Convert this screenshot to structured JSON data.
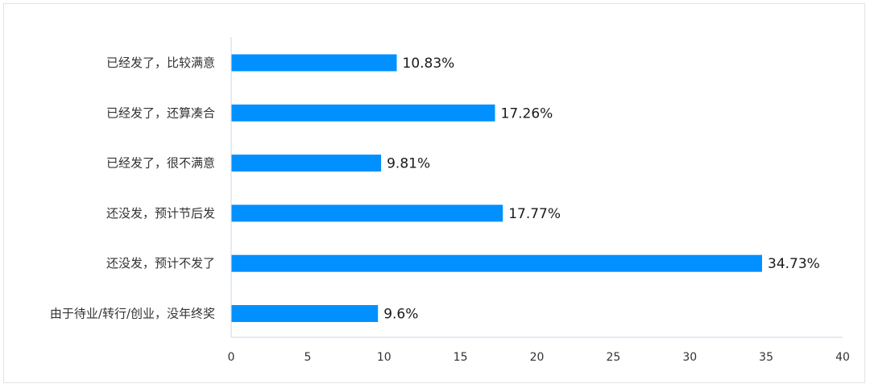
{
  "chart_data": {
    "type": "bar",
    "orientation": "horizontal",
    "categories": [
      "已经发了，比较满意",
      "已经发了，还算凑合",
      "已经发了，很不满意",
      "还没发，预计节后发",
      "还没发，预计不发了",
      "由于待业/转行/创业，没年终奖"
    ],
    "values": [
      10.83,
      17.26,
      9.81,
      17.77,
      34.73,
      9.6
    ],
    "value_labels": [
      "10.83%",
      "17.26%",
      "9.81%",
      "17.77%",
      "34.73%",
      "9.6%"
    ],
    "xlim": [
      0,
      40
    ],
    "xticks": [
      0,
      5,
      10,
      15,
      20,
      25,
      30,
      35,
      40
    ],
    "bar_color": "#0090ff",
    "axis_color": "#c9d9ec",
    "grid": false,
    "legend": "none"
  }
}
